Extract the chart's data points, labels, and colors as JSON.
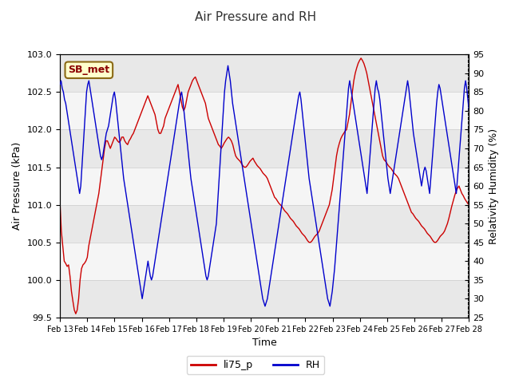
{
  "title": "Air Pressure and RH",
  "xlabel": "Time",
  "ylabel_left": "Air Pressure (kPa)",
  "ylabel_right": "Relativity Humidity (%)",
  "annotation_text": "SB_met",
  "ylim_left": [
    99.5,
    103.0
  ],
  "ylim_right": [
    25,
    95
  ],
  "yticks_left": [
    99.5,
    100.0,
    100.5,
    101.0,
    101.5,
    102.0,
    102.5,
    103.0
  ],
  "yticks_right": [
    25,
    30,
    35,
    40,
    45,
    50,
    55,
    60,
    65,
    70,
    75,
    80,
    85,
    90,
    95
  ],
  "xtick_labels": [
    "Feb 13",
    "Feb 14",
    "Feb 15",
    "Feb 16",
    "Feb 17",
    "Feb 18",
    "Feb 19",
    "Feb 20",
    "Feb 21",
    "Feb 22",
    "Feb 23",
    "Feb 24",
    "Feb 25",
    "Feb 26",
    "Feb 27",
    "Feb 28"
  ],
  "line1_color": "#cc0000",
  "line2_color": "#0000cc",
  "line1_label": "li75_p",
  "line2_label": "RH",
  "background_color": "#ffffff",
  "band_colors": [
    "#e8e8e8",
    "#f5f5f5"
  ],
  "title_color": "#333333",
  "grid_color": "#cccccc",
  "li75_p": [
    101.05,
    100.65,
    100.45,
    100.25,
    100.22,
    100.18,
    100.2,
    100.05,
    99.85,
    99.72,
    99.6,
    99.55,
    99.6,
    99.75,
    100.0,
    100.15,
    100.2,
    100.22,
    100.25,
    100.3,
    100.45,
    100.55,
    100.65,
    100.75,
    100.85,
    100.95,
    101.05,
    101.15,
    101.3,
    101.45,
    101.6,
    101.75,
    101.85,
    101.85,
    101.8,
    101.75,
    101.8,
    101.85,
    101.9,
    101.88,
    101.85,
    101.83,
    101.85,
    101.9,
    101.9,
    101.85,
    101.82,
    101.8,
    101.85,
    101.88,
    101.92,
    101.95,
    102.0,
    102.05,
    102.1,
    102.15,
    102.2,
    102.25,
    102.3,
    102.35,
    102.4,
    102.45,
    102.4,
    102.35,
    102.3,
    102.25,
    102.2,
    102.1,
    102.0,
    101.95,
    101.95,
    102.0,
    102.05,
    102.15,
    102.2,
    102.25,
    102.3,
    102.35,
    102.4,
    102.45,
    102.5,
    102.55,
    102.6,
    102.5,
    102.4,
    102.3,
    102.25,
    102.3,
    102.4,
    102.5,
    102.55,
    102.6,
    102.65,
    102.68,
    102.7,
    102.65,
    102.6,
    102.55,
    102.5,
    102.45,
    102.4,
    102.35,
    102.25,
    102.15,
    102.1,
    102.05,
    102.0,
    101.95,
    101.9,
    101.85,
    101.8,
    101.78,
    101.75,
    101.78,
    101.82,
    101.85,
    101.88,
    101.9,
    101.88,
    101.85,
    101.8,
    101.72,
    101.65,
    101.62,
    101.6,
    101.58,
    101.55,
    101.52,
    101.5,
    101.5,
    101.52,
    101.55,
    101.58,
    101.6,
    101.62,
    101.58,
    101.55,
    101.52,
    101.5,
    101.48,
    101.45,
    101.42,
    101.4,
    101.38,
    101.35,
    101.3,
    101.25,
    101.2,
    101.15,
    101.1,
    101.08,
    101.05,
    101.02,
    101.0,
    100.98,
    100.95,
    100.92,
    100.9,
    100.88,
    100.85,
    100.82,
    100.8,
    100.78,
    100.75,
    100.72,
    100.7,
    100.68,
    100.65,
    100.62,
    100.6,
    100.58,
    100.55,
    100.52,
    100.5,
    100.5,
    100.52,
    100.55,
    100.58,
    100.6,
    100.62,
    100.65,
    100.7,
    100.75,
    100.8,
    100.85,
    100.9,
    100.95,
    101.0,
    101.1,
    101.2,
    101.35,
    101.5,
    101.65,
    101.75,
    101.82,
    101.88,
    101.92,
    101.95,
    101.98,
    102.0,
    102.1,
    102.2,
    102.35,
    102.5,
    102.65,
    102.75,
    102.82,
    102.88,
    102.92,
    102.95,
    102.92,
    102.88,
    102.82,
    102.75,
    102.65,
    102.55,
    102.45,
    102.35,
    102.25,
    102.15,
    102.05,
    101.95,
    101.85,
    101.75,
    101.65,
    101.6,
    101.58,
    101.55,
    101.52,
    101.5,
    101.48,
    101.45,
    101.42,
    101.4,
    101.38,
    101.35,
    101.3,
    101.25,
    101.2,
    101.15,
    101.1,
    101.05,
    101.0,
    100.95,
    100.9,
    100.88,
    100.85,
    100.82,
    100.8,
    100.78,
    100.75,
    100.72,
    100.7,
    100.68,
    100.65,
    100.62,
    100.6,
    100.58,
    100.55,
    100.52,
    100.5,
    100.5,
    100.52,
    100.55,
    100.58,
    100.6,
    100.62,
    100.65,
    100.7,
    100.75,
    100.82,
    100.9,
    100.98,
    101.05,
    101.12,
    101.18,
    101.22,
    101.25,
    101.2,
    101.15,
    101.12,
    101.08,
    101.05,
    101.02,
    101.0
  ],
  "rh": [
    87,
    88,
    86,
    85,
    83,
    82,
    80,
    78,
    76,
    74,
    72,
    70,
    68,
    66,
    64,
    62,
    60,
    58,
    60,
    65,
    70,
    75,
    80,
    85,
    87,
    88,
    86,
    84,
    82,
    80,
    78,
    76,
    74,
    72,
    70,
    68,
    67,
    68,
    70,
    72,
    74,
    75,
    76,
    78,
    80,
    82,
    84,
    85,
    83,
    80,
    77,
    74,
    71,
    68,
    65,
    62,
    60,
    58,
    56,
    54,
    52,
    50,
    48,
    46,
    44,
    42,
    40,
    38,
    36,
    34,
    32,
    30,
    32,
    34,
    36,
    38,
    40,
    38,
    36,
    35,
    36,
    38,
    40,
    42,
    44,
    46,
    48,
    50,
    52,
    54,
    56,
    58,
    60,
    62,
    64,
    66,
    68,
    70,
    72,
    74,
    76,
    78,
    80,
    82,
    84,
    85,
    83,
    80,
    77,
    74,
    71,
    68,
    65,
    62,
    60,
    58,
    56,
    54,
    52,
    50,
    48,
    46,
    44,
    42,
    40,
    38,
    36,
    35,
    36,
    38,
    40,
    42,
    44,
    46,
    48,
    50,
    55,
    60,
    65,
    70,
    75,
    80,
    85,
    88,
    90,
    92,
    90,
    88,
    85,
    82,
    80,
    78,
    76,
    74,
    72,
    70,
    68,
    66,
    64,
    62,
    60,
    58,
    56,
    54,
    52,
    50,
    48,
    46,
    44,
    42,
    40,
    38,
    36,
    34,
    32,
    30,
    29,
    28,
    29,
    30,
    32,
    34,
    36,
    38,
    40,
    42,
    44,
    46,
    48,
    50,
    52,
    54,
    56,
    58,
    60,
    62,
    64,
    66,
    68,
    70,
    72,
    74,
    76,
    78,
    80,
    82,
    84,
    85,
    83,
    80,
    77,
    74,
    71,
    68,
    65,
    62,
    60,
    58,
    56,
    54,
    52,
    50,
    48,
    46,
    44,
    42,
    40,
    38,
    36,
    34,
    32,
    30,
    29,
    28,
    30,
    32,
    35,
    38,
    42,
    46,
    50,
    54,
    58,
    62,
    66,
    70,
    74,
    78,
    82,
    86,
    88,
    86,
    84,
    82,
    80,
    78,
    76,
    74,
    72,
    70,
    68,
    66,
    64,
    62,
    60,
    58,
    62,
    66,
    70,
    74,
    78,
    82,
    86,
    88,
    86,
    85,
    83,
    80,
    77,
    74,
    71,
    68,
    65,
    62,
    60,
    58,
    60,
    62,
    64,
    66,
    68,
    70,
    72,
    74,
    76,
    78,
    80,
    82,
    84,
    86,
    88,
    86,
    83,
    80,
    77,
    74,
    72,
    70,
    68,
    66,
    64,
    62,
    60,
    62,
    64,
    65,
    64,
    62,
    60,
    58,
    62,
    66,
    70,
    74,
    78,
    82,
    85,
    87,
    86,
    84,
    82,
    80,
    78,
    76,
    74,
    72,
    70,
    68,
    66,
    64,
    62,
    60,
    58,
    62,
    66,
    70,
    74,
    78,
    82,
    86,
    88,
    86,
    83,
    80
  ]
}
